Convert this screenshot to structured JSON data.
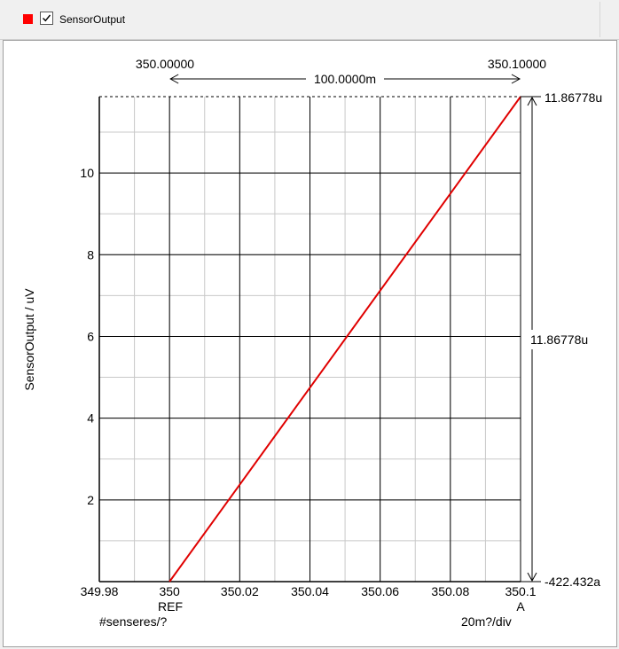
{
  "legend": {
    "label": "SensorOutput",
    "swatch_color": "#ff0000",
    "checked": true,
    "check_icon": "checkmark-icon"
  },
  "chart_data": {
    "type": "line",
    "series": [
      {
        "name": "SensorOutput",
        "color": "#e00000",
        "x": [
          350.0,
          350.1
        ],
        "y": [
          0.0,
          11.86778
        ]
      }
    ],
    "xlabel": "",
    "ylabel": "SensorOutput / uV",
    "xlim": [
      349.98,
      350.1
    ],
    "ylim": [
      0,
      11.86778
    ],
    "x_ticks": [
      {
        "value": 349.98,
        "label": "349.98"
      },
      {
        "value": 350.0,
        "label": "350"
      },
      {
        "value": 350.02,
        "label": "350.02"
      },
      {
        "value": 350.04,
        "label": "350.04"
      },
      {
        "value": 350.06,
        "label": "350.06"
      },
      {
        "value": 350.08,
        "label": "350.08"
      },
      {
        "value": 350.1,
        "label": "350.1"
      }
    ],
    "y_ticks": [
      {
        "value": 2,
        "label": "2"
      },
      {
        "value": 4,
        "label": "4"
      },
      {
        "value": 6,
        "label": "6"
      },
      {
        "value": 8,
        "label": "8"
      },
      {
        "value": 10,
        "label": "10"
      }
    ],
    "x_minor_step": 0.01,
    "y_minor_step": 1,
    "grid": true,
    "cursors": {
      "ref_x": 350.0,
      "a_x": 350.1,
      "ref_label": "REF",
      "a_label": "A",
      "ref_value_label": "350.00000",
      "a_value_label": "350.10000",
      "delta_x_label": "100.0000m",
      "top_value": 11.86778,
      "top_value_label": "11.86778u",
      "delta_y_label": "11.86778u",
      "bottom_value_label": "-422.432a"
    },
    "x_unit_label": "#senseres/?",
    "x_div_label": "20m?/div"
  }
}
